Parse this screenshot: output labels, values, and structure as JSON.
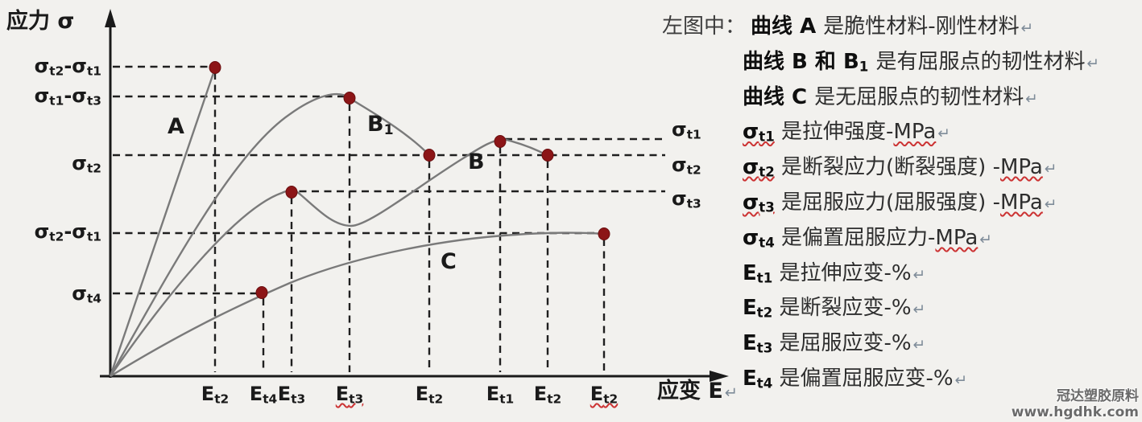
{
  "figure": {
    "y_axis_title": "应力 σ",
    "x_axis_title": "应变 E",
    "x_axis_mark": "↵",
    "y_ticks": [
      {
        "label": "σ[t2]-σ[t1]"
      },
      {
        "label": "σ[t1]-σ[t3]"
      },
      {
        "label": "σ[t2]"
      },
      {
        "label": "σ[t2]-σ[t1]"
      },
      {
        "label": "σ[t4]"
      }
    ],
    "right_labels": [
      {
        "label": "σ[t1]"
      },
      {
        "label": "σ[t2]"
      },
      {
        "label": "σ[t3]"
      }
    ],
    "curve_labels": {
      "a": "A",
      "b1": "B[1]",
      "b": "B",
      "c": "C"
    },
    "x_ticks": [
      {
        "label": "E[t2]",
        "squiggle": false
      },
      {
        "label": "E[t4]",
        "squiggle": false
      },
      {
        "label": "E[t3]",
        "squiggle": false
      },
      {
        "label": "E[t3]",
        "squiggle": true
      },
      {
        "label": "E[t2]",
        "squiggle": false
      },
      {
        "label": "E[t1]",
        "squiggle": false
      },
      {
        "label": "E[t2]",
        "squiggle": false
      },
      {
        "label": "E[t2]",
        "squiggle": true
      }
    ]
  },
  "chart_data": {
    "type": "line",
    "title": "",
    "xlabel": "应变 E",
    "ylabel": "应力 σ",
    "axes_numeric": false,
    "grid": "dashed guide lines from marked points to both axes",
    "x_ticks": [
      "E[t2]",
      "E[t4]",
      "E[t3]",
      "E[t3]",
      "E[t2]",
      "E[t1]",
      "E[t2]",
      "E[t2]"
    ],
    "y_tick_labels_left": [
      "σ[t2]-σ[t1]",
      "σ[t1]-σ[t3]",
      "σ[t2]",
      "σ[t2]-σ[t1]",
      "σ[t4]"
    ],
    "y_labels_right": [
      "σ[t1]",
      "σ[t2]",
      "σ[t3]"
    ],
    "curve_color": "#7a7a7a",
    "marker_color": "#8c1517",
    "series": [
      {
        "name": "A",
        "label": "A",
        "shape": "straight line from origin",
        "points": [
          {
            "x": "E[t2]",
            "y": "σ[t2]-σ[t1]",
            "feature": "break",
            "marker": true
          }
        ]
      },
      {
        "name": "B1",
        "label": "B[1]",
        "shape": "rises from origin, peak, then falls to break",
        "points": [
          {
            "x": "E[t3]",
            "y": "σ[t1]-σ[t3]",
            "feature": "peak/yield",
            "marker": true
          },
          {
            "x": "E[t2]",
            "y": "σ[t2]",
            "feature": "break",
            "marker": true
          }
        ]
      },
      {
        "name": "B",
        "label": "B",
        "shape": "rises, local yield maximum, dip, second peak, slight drop to break",
        "points": [
          {
            "x": "E[t3]",
            "y": "σ[t3]",
            "feature": "yield",
            "marker": true
          },
          {
            "x": "E[t1]",
            "y": "σ[t1]",
            "feature": "peak",
            "marker": true
          },
          {
            "x": "E[t2]",
            "y": "σ[t2]",
            "feature": "break",
            "marker": true
          }
        ]
      },
      {
        "name": "C",
        "label": "C",
        "shape": "monotonic rise with decreasing slope, no yield point",
        "points": [
          {
            "x": "E[t4]",
            "y": "σ[t4]",
            "feature": "offset yield",
            "marker": true
          },
          {
            "x": "E[t2]",
            "y": "σ[t2]-σ[t1]",
            "feature": "break",
            "marker": true
          }
        ]
      }
    ]
  },
  "legend": {
    "prefix": "左图中：",
    "lines": [
      {
        "segments": [
          {
            "t": "曲线 A ",
            "b": true
          },
          {
            "t": "是脆性材料-刚性材料"
          },
          {
            "t": "↵",
            "mk": true
          }
        ]
      },
      {
        "segments": [
          {
            "t": "曲线 B 和 B[1] ",
            "b": true
          },
          {
            "t": "是有屈服点的韧性材料"
          },
          {
            "t": "↵",
            "mk": true
          }
        ]
      },
      {
        "segments": [
          {
            "t": "曲线 C ",
            "b": true
          },
          {
            "t": "是无屈服点的韧性材料"
          },
          {
            "t": "↵",
            "mk": true
          }
        ]
      },
      {
        "segments": [
          {
            "t": "σ[t1]",
            "b": true,
            "sq": true
          },
          {
            "t": " 是拉伸强度-"
          },
          {
            "t": "MPa",
            "sq": true
          },
          {
            "t": "↵",
            "mk": true
          }
        ]
      },
      {
        "segments": [
          {
            "t": "σ[t2]",
            "b": true,
            "sq": true
          },
          {
            "t": " 是断裂应力(断裂强度) -"
          },
          {
            "t": "MPa",
            "sq": true
          },
          {
            "t": "↵",
            "mk": true
          }
        ]
      },
      {
        "segments": [
          {
            "t": "σ[t3]",
            "b": true,
            "sq": true
          },
          {
            "t": " 是屈服应力(屈服强度) -"
          },
          {
            "t": "MPa",
            "sq": true
          },
          {
            "t": "↵",
            "mk": true
          }
        ]
      },
      {
        "segments": [
          {
            "t": "σ[t4]",
            "b": true
          },
          {
            "t": " 是偏置屈服应力-"
          },
          {
            "t": "MPa",
            "sq": true
          },
          {
            "t": "↵",
            "mk": true
          }
        ]
      },
      {
        "segments": [
          {
            "t": "E[t1]",
            "b": true
          },
          {
            "t": " 是拉伸应变-%"
          },
          {
            "t": "↵",
            "mk": true
          }
        ]
      },
      {
        "segments": [
          {
            "t": "E[t2]",
            "b": true
          },
          {
            "t": " 是断裂应变-%"
          },
          {
            "t": "↵",
            "mk": true
          }
        ]
      },
      {
        "segments": [
          {
            "t": "E[t3]",
            "b": true
          },
          {
            "t": " 是屈服应变-%"
          },
          {
            "t": "↵",
            "mk": true
          }
        ]
      },
      {
        "segments": [
          {
            "t": "E[t4]",
            "b": true
          },
          {
            "t": " 是偏置屈服应变-%"
          },
          {
            "t": "↵",
            "mk": true
          }
        ]
      }
    ]
  },
  "watermark": {
    "line1": "冠达塑胶原料",
    "line2": "www.hgdhk.com"
  },
  "colors": {
    "dash": "#1f1f1f",
    "curve": "#7a7a7a",
    "marker": "#8c1517",
    "squiggle": "#cc3333",
    "background": "#f2f1ee"
  }
}
